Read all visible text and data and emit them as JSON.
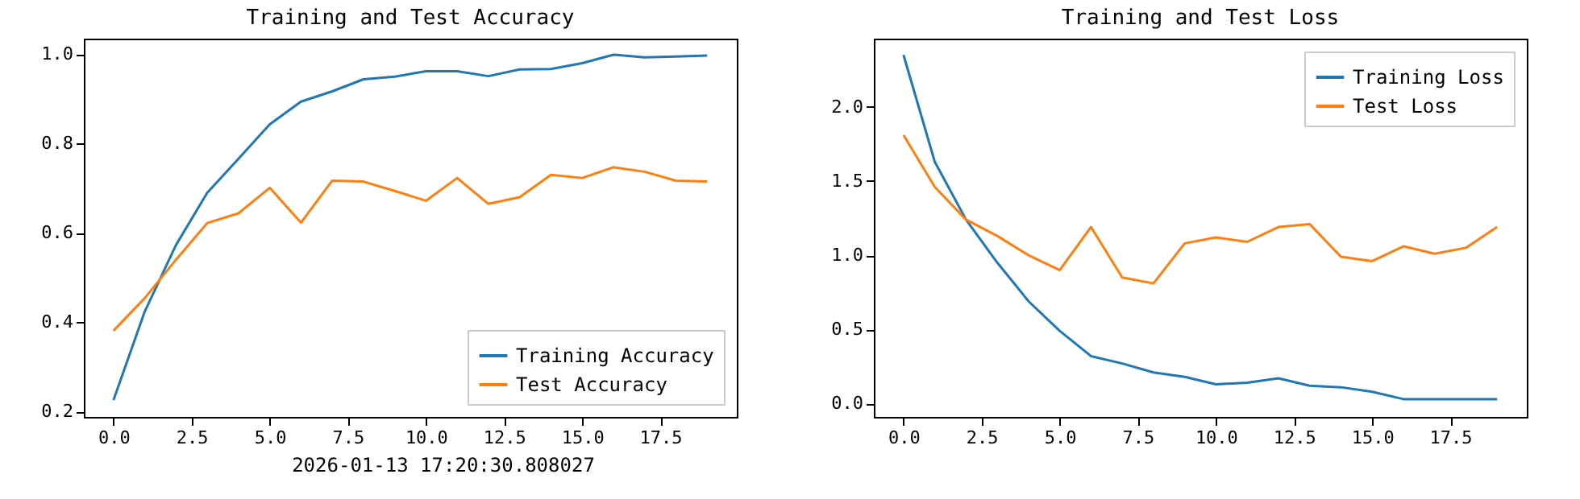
{
  "chart_data": [
    {
      "type": "line",
      "title": "Training and Test Accuracy",
      "x": [
        0,
        1,
        2,
        3,
        4,
        5,
        6,
        7,
        8,
        9,
        10,
        11,
        12,
        13,
        14,
        15,
        16,
        17,
        18,
        19
      ],
      "series": [
        {
          "name": "Training Accuracy",
          "color": "#1f77b4",
          "values": [
            0.226,
            0.424,
            0.573,
            0.69,
            0.766,
            0.843,
            0.894,
            0.917,
            0.944,
            0.95,
            0.962,
            0.962,
            0.951,
            0.966,
            0.967,
            0.98,
            0.999,
            0.993,
            0.995,
            0.997
          ]
        },
        {
          "name": "Test Accuracy",
          "color": "#ff7f0e",
          "values": [
            0.381,
            0.454,
            0.54,
            0.622,
            0.644,
            0.701,
            0.623,
            0.717,
            0.715,
            0.694,
            0.672,
            0.723,
            0.665,
            0.68,
            0.73,
            0.723,
            0.747,
            0.737,
            0.717,
            0.715
          ]
        }
      ],
      "xlim": [
        -0.95,
        19.95
      ],
      "xticks": [
        {
          "value": 0,
          "label": "0.0"
        },
        {
          "value": 2.5,
          "label": "2.5"
        },
        {
          "value": 5,
          "label": "5.0"
        },
        {
          "value": 7.5,
          "label": "7.5"
        },
        {
          "value": 10,
          "label": "10.0"
        },
        {
          "value": 12.5,
          "label": "12.5"
        },
        {
          "value": 15,
          "label": "15.0"
        },
        {
          "value": 17.5,
          "label": "17.5"
        }
      ],
      "ylim": [
        0.188,
        1.035
      ],
      "yticks": [
        0.2,
        0.4,
        0.6,
        0.8,
        {
          "value": 1,
          "label": "1.0"
        }
      ],
      "grid": false,
      "legend": "bottom right",
      "annotations": [
        "2026-01-13 17:20:30.808027"
      ]
    },
    {
      "type": "line",
      "title": "Training and Test Loss",
      "x": [
        0,
        1,
        2,
        3,
        4,
        5,
        6,
        7,
        8,
        9,
        10,
        11,
        12,
        13,
        14,
        15,
        16,
        17,
        18,
        19
      ],
      "series": [
        {
          "name": "Training Loss",
          "color": "#1f77b4",
          "values": [
            2.35,
            1.63,
            1.24,
            0.95,
            0.69,
            0.49,
            0.32,
            0.27,
            0.21,
            0.18,
            0.13,
            0.14,
            0.17,
            0.12,
            0.11,
            0.08,
            0.03,
            0.03,
            0.03,
            0.03
          ]
        },
        {
          "name": "Test Loss",
          "color": "#ff7f0e",
          "values": [
            1.81,
            1.46,
            1.24,
            1.13,
            1.0,
            0.9,
            1.19,
            0.85,
            0.81,
            1.08,
            1.12,
            1.09,
            1.19,
            1.21,
            0.99,
            0.96,
            1.06,
            1.01,
            1.05,
            1.19
          ]
        }
      ],
      "xlim": [
        -0.95,
        19.95
      ],
      "xticks": [
        {
          "value": 0,
          "label": "0.0"
        },
        {
          "value": 2.5,
          "label": "2.5"
        },
        {
          "value": 5,
          "label": "5.0"
        },
        {
          "value": 7.5,
          "label": "7.5"
        },
        {
          "value": 10,
          "label": "10.0"
        },
        {
          "value": 12.5,
          "label": "12.5"
        },
        {
          "value": 15,
          "label": "15.0"
        },
        {
          "value": 17.5,
          "label": "17.5"
        }
      ],
      "ylim": [
        -0.09,
        2.46
      ],
      "yticks": [
        {
          "value": 0,
          "label": "0.0"
        },
        {
          "value": 0.5,
          "label": "0.5"
        },
        {
          "value": 1,
          "label": "1.0"
        },
        {
          "value": 1.5,
          "label": "1.5"
        },
        {
          "value": 2,
          "label": "2.0"
        }
      ],
      "grid": false,
      "legend": "top right"
    }
  ]
}
